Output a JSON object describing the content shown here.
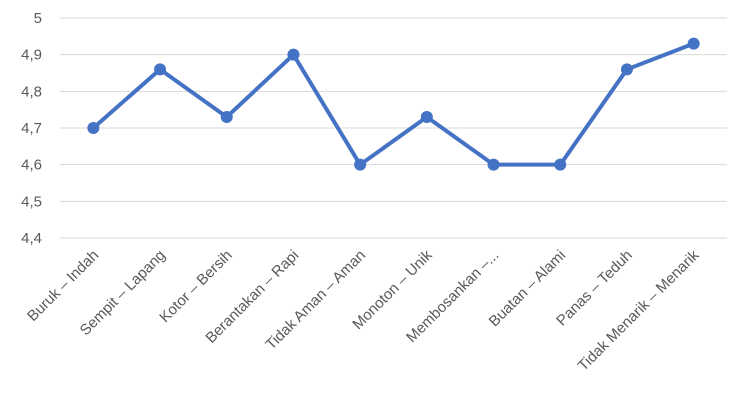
{
  "chart_data": {
    "type": "line",
    "categories": [
      "Buruk – Indah",
      "Sempit – Lapang",
      "Kotor – Bersih",
      "Berantakan – Rapi",
      "Tidak Aman – Aman",
      "Monoton – Unik",
      "Membosankan –...",
      "Buatan – Alami",
      "Panas – Teduh",
      "Tidak Menarik – Menarik"
    ],
    "series": [
      {
        "values": [
          4.7,
          4.86,
          4.73,
          4.9,
          4.6,
          4.73,
          4.6,
          4.6,
          4.86,
          4.93
        ]
      }
    ],
    "y_ticks": [
      "4,4",
      "4,5",
      "4,6",
      "4,7",
      "4,8",
      "4,9",
      "5"
    ],
    "ylim": [
      4.4,
      5.0
    ],
    "grid": true,
    "legend": "none",
    "title": "",
    "xlabel": "",
    "ylabel": "",
    "series_color": "#4472c4"
  }
}
